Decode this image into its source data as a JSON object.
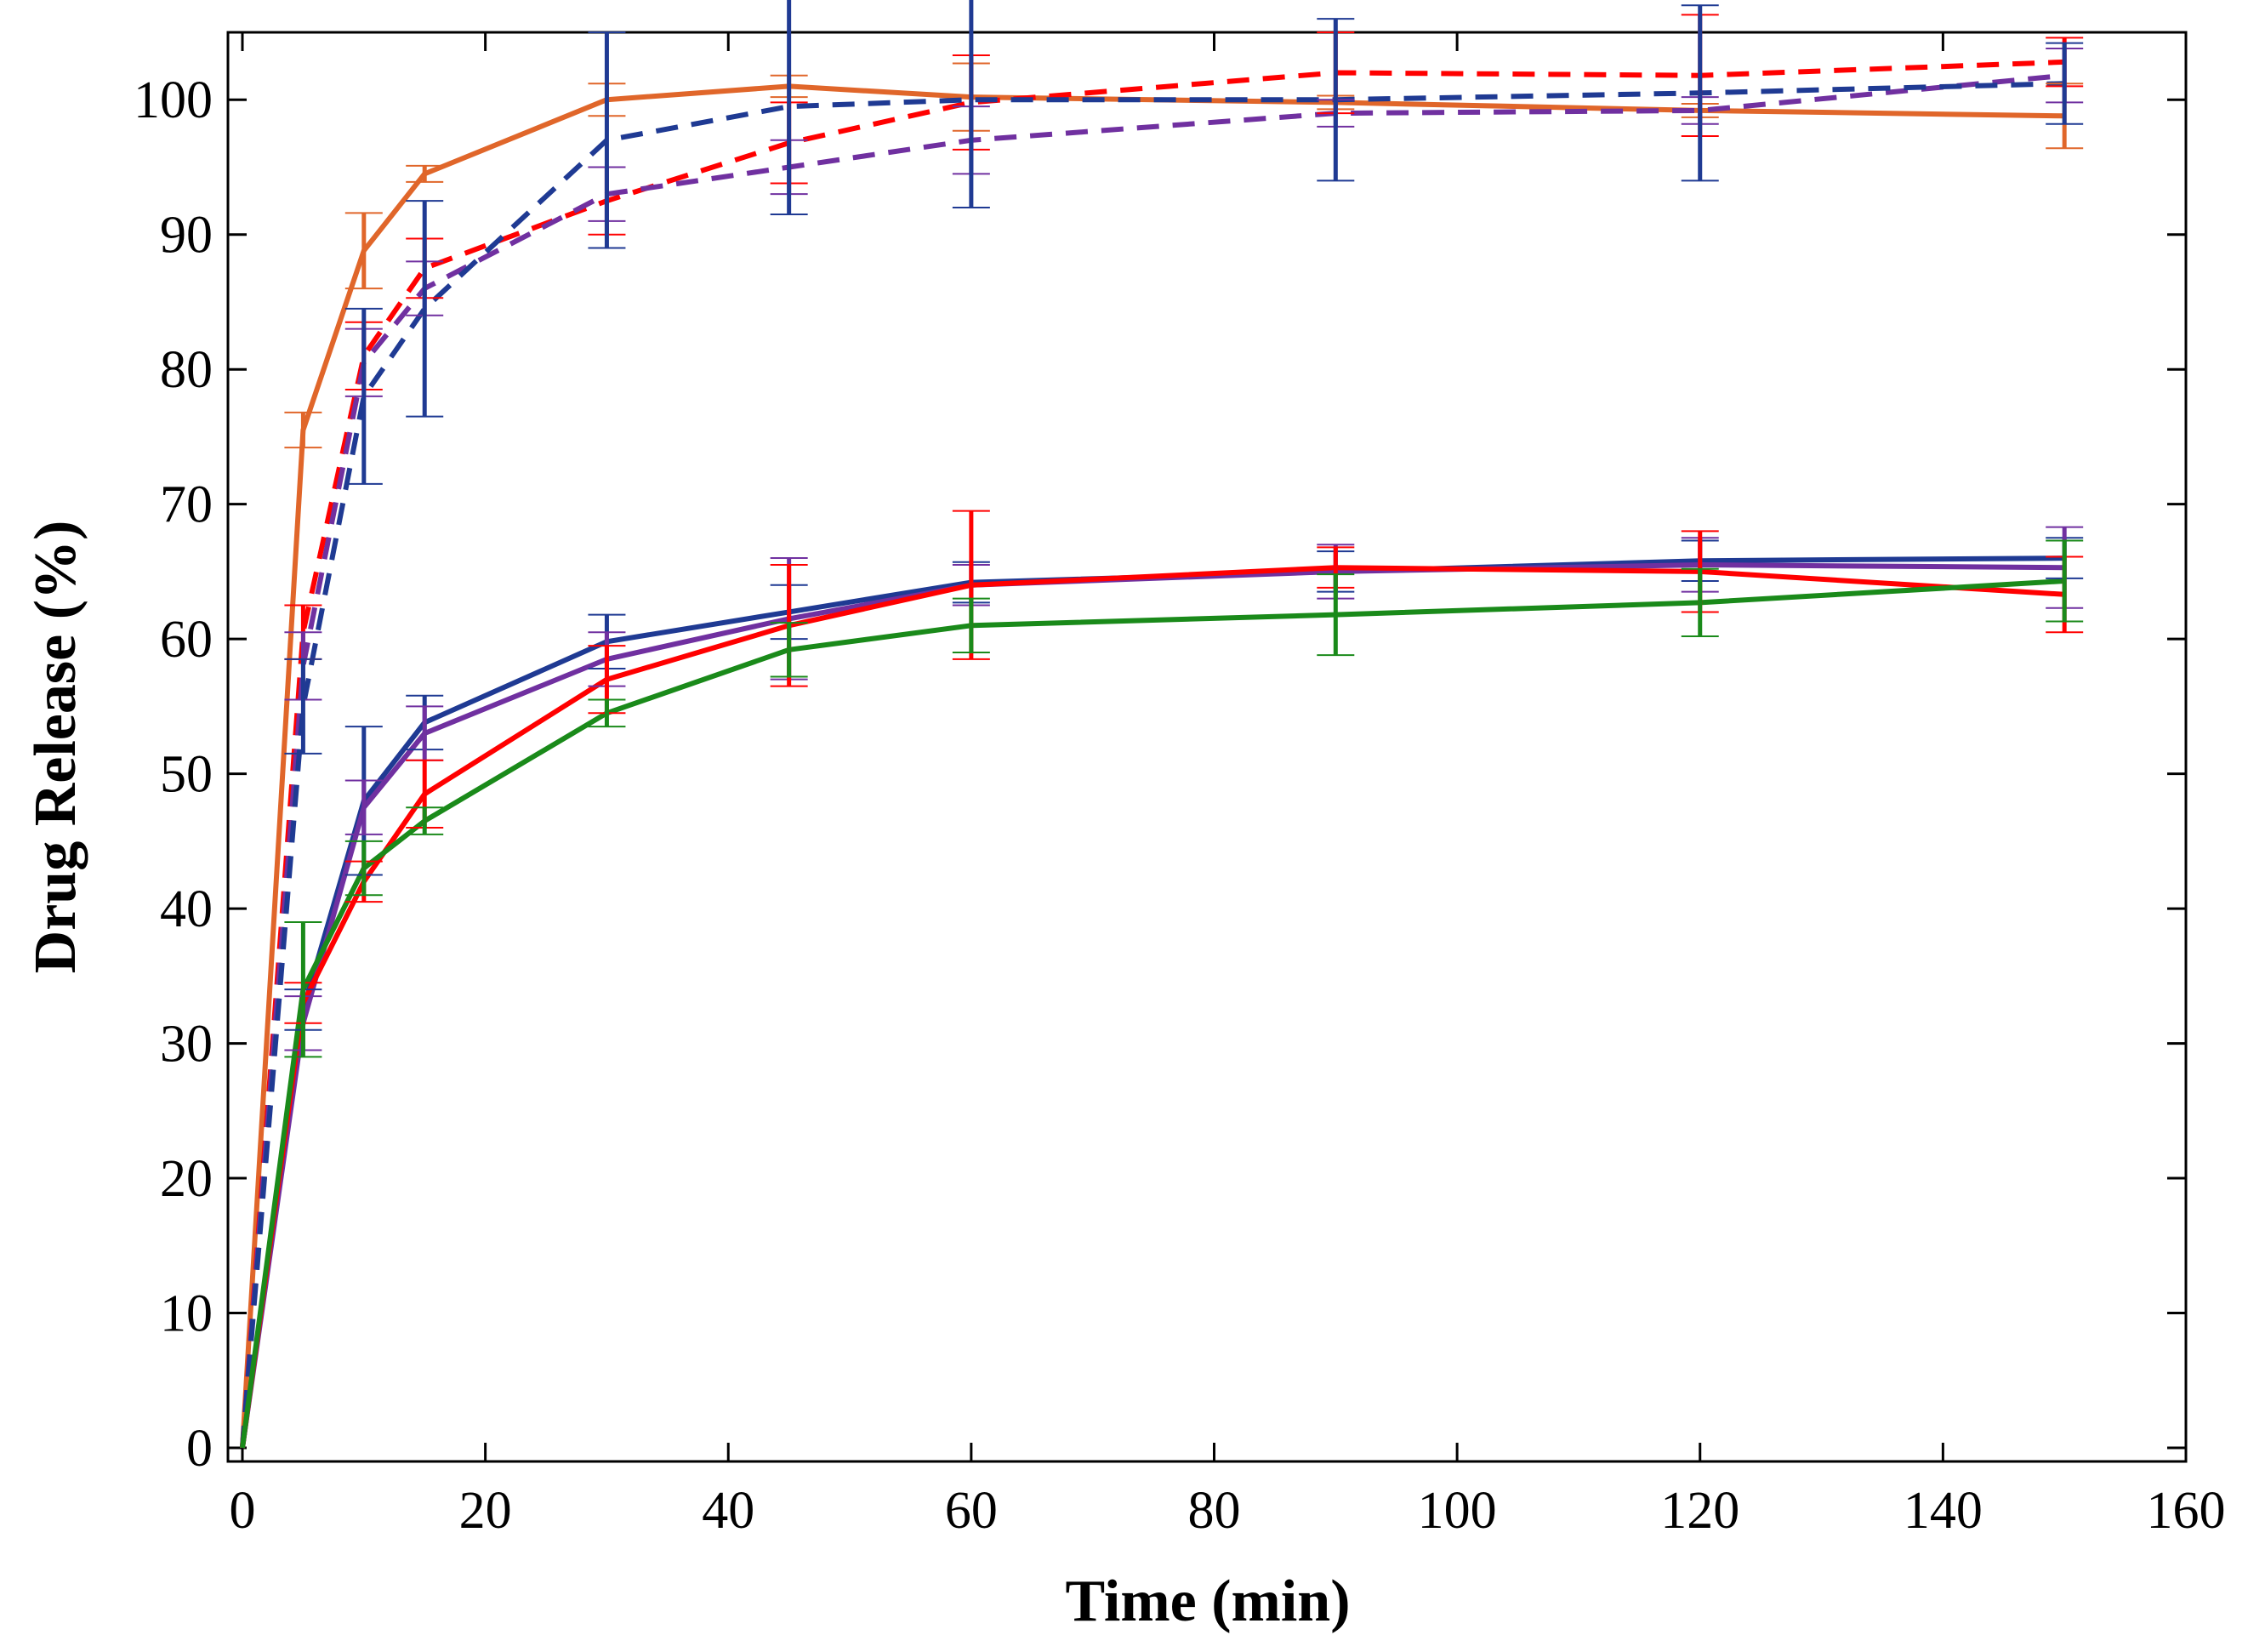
{
  "chart_data": {
    "type": "line",
    "title": "",
    "xlabel": "Time (min)",
    "ylabel": "Drug Release (%)",
    "xlim": [
      0,
      160
    ],
    "ylim": [
      0,
      105
    ],
    "xticks": [
      0,
      20,
      40,
      60,
      80,
      100,
      120,
      140,
      160
    ],
    "yticks": [
      0,
      10,
      20,
      30,
      40,
      50,
      60,
      70,
      80,
      90,
      100
    ],
    "x": [
      0,
      5,
      10,
      15,
      30,
      45,
      60,
      90,
      120,
      150
    ],
    "grid": false,
    "series": [
      {
        "name": "orange solid",
        "color": "#e0662a",
        "style": "solid",
        "values": [
          0,
          75.5,
          88.8,
          94.5,
          100.0,
          101.0,
          100.2,
          99.8,
          99.2,
          98.8
        ],
        "errors": [
          0,
          1.3,
          2.8,
          0.6,
          1.2,
          0.8,
          2.5,
          0.5,
          0.5,
          2.4
        ]
      },
      {
        "name": "red dashed",
        "color": "#ff0000",
        "style": "dashed",
        "values": [
          0,
          60.5,
          81.0,
          87.5,
          92.5,
          96.8,
          99.8,
          102.0,
          101.8,
          102.8
        ],
        "errors": [
          0,
          2.0,
          2.5,
          2.2,
          2.5,
          3.0,
          3.5,
          3.0,
          4.5,
          1.8
        ]
      },
      {
        "name": "purple dashed",
        "color": "#7030a0",
        "style": "dashed",
        "values": [
          0,
          58.0,
          80.5,
          86.0,
          93.0,
          95.0,
          97.0,
          99.0,
          99.2,
          101.8
        ],
        "errors": [
          0,
          2.5,
          2.5,
          2.0,
          2.0,
          2.0,
          2.5,
          1.0,
          1.0,
          2.0
        ]
      },
      {
        "name": "blue dashed",
        "color": "#1f3a93",
        "style": "dashed",
        "values": [
          0,
          55.0,
          78.0,
          84.5,
          97.0,
          99.5,
          100.0,
          100.0,
          100.5,
          101.2
        ],
        "errors": [
          0,
          3.5,
          6.5,
          8.0,
          8.0,
          8.0,
          8.0,
          6.0,
          6.5,
          3.0
        ]
      },
      {
        "name": "blue solid",
        "color": "#1f3a93",
        "style": "solid",
        "values": [
          0,
          32.5,
          48.0,
          53.8,
          59.8,
          62.0,
          64.2,
          65.0,
          65.8,
          66.0
        ],
        "errors": [
          0,
          1.5,
          5.5,
          2.0,
          2.0,
          2.0,
          1.5,
          1.5,
          1.5,
          1.5
        ]
      },
      {
        "name": "purple solid",
        "color": "#7030a0",
        "style": "solid",
        "values": [
          0,
          31.5,
          47.5,
          53.0,
          58.5,
          61.5,
          64.0,
          65.0,
          65.5,
          65.3
        ],
        "errors": [
          0,
          2.0,
          2.0,
          2.0,
          2.0,
          4.5,
          1.5,
          2.0,
          2.0,
          3.0
        ]
      },
      {
        "name": "red solid",
        "color": "#ff0000",
        "style": "solid",
        "values": [
          0,
          33.0,
          42.0,
          48.5,
          57.0,
          61.0,
          64.0,
          65.3,
          65.0,
          63.3
        ],
        "errors": [
          0,
          1.5,
          1.5,
          2.5,
          2.5,
          4.5,
          5.5,
          1.5,
          3.0,
          2.8
        ]
      },
      {
        "name": "green solid",
        "color": "#1a8a1a",
        "style": "solid",
        "values": [
          0,
          34.0,
          43.0,
          46.5,
          54.5,
          59.2,
          61.0,
          61.8,
          62.7,
          64.3
        ],
        "errors": [
          0,
          5.0,
          2.0,
          1.0,
          1.0,
          2.0,
          2.0,
          3.0,
          2.5,
          3.0
        ]
      }
    ]
  }
}
